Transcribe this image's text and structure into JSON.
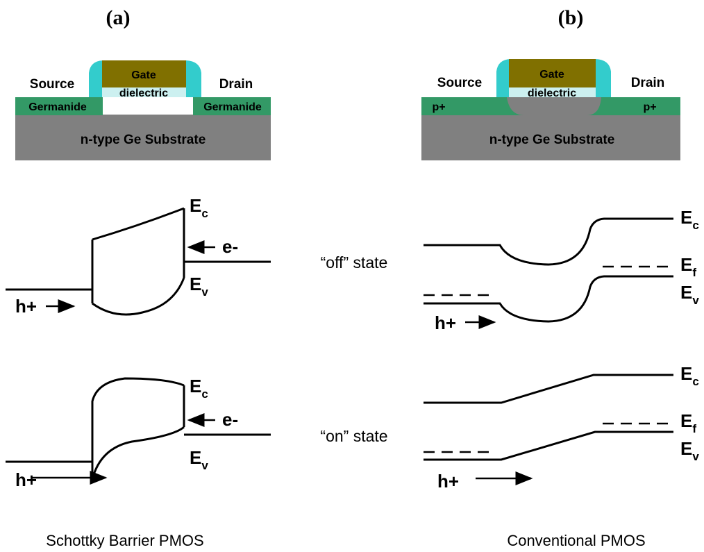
{
  "panel_a": {
    "heading": "(a)",
    "device": {
      "source": "Source",
      "drain": "Drain",
      "gate": "Gate",
      "dielectric": "dielectric",
      "left_region": "Germanide",
      "right_region": "Germanide",
      "substrate": "n-type Ge Substrate"
    },
    "off_band": {
      "ec": {
        "symbol": "E",
        "subscript": "c"
      },
      "ev": {
        "symbol": "E",
        "subscript": "v"
      },
      "electron": "e-",
      "hole": "h+"
    },
    "on_band": {
      "ec": {
        "symbol": "E",
        "subscript": "c"
      },
      "ev": {
        "symbol": "E",
        "subscript": "v"
      },
      "electron": "e-",
      "hole": "h+"
    },
    "caption": "Schottky Barrier PMOS"
  },
  "panel_b": {
    "heading": "(b)",
    "device": {
      "source": "Source",
      "drain": "Drain",
      "gate": "Gate",
      "dielectric": "dielectric",
      "left_region": "p+",
      "right_region": "p+",
      "substrate": "n-type Ge Substrate"
    },
    "off_band": {
      "ec": {
        "symbol": "E",
        "subscript": "c"
      },
      "ef": {
        "symbol": "E",
        "subscript": "f"
      },
      "ev": {
        "symbol": "E",
        "subscript": "v"
      },
      "hole": "h+"
    },
    "on_band": {
      "ec": {
        "symbol": "E",
        "subscript": "c"
      },
      "ef": {
        "symbol": "E",
        "subscript": "f"
      },
      "ev": {
        "symbol": "E",
        "subscript": "v"
      },
      "hole": "h+"
    },
    "caption": "Conventional PMOS"
  },
  "states": {
    "off": "“off” state",
    "on": "“on” state"
  }
}
